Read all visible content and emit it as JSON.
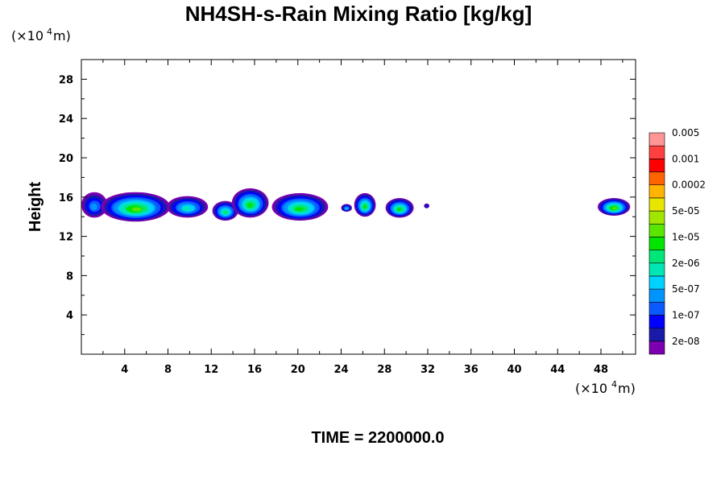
{
  "chart_data": {
    "type": "heatmap",
    "title": "NH4SH-s-Rain Mixing Ratio [kg/kg]",
    "ylabel": "Height",
    "xlabel": "",
    "x_unit": {
      "prefix": "(×10",
      "exp": "4",
      "suffix": " m)"
    },
    "y_unit": {
      "prefix": "(×10",
      "exp": "4",
      "suffix": " m)"
    },
    "xlim": [
      0,
      51.2
    ],
    "ylim": [
      0,
      30
    ],
    "x_ticks": [
      4,
      8,
      12,
      16,
      20,
      24,
      28,
      32,
      36,
      40,
      44,
      48
    ],
    "y_ticks": [
      4,
      8,
      12,
      16,
      20,
      24,
      28
    ],
    "x_minor_step": 2,
    "y_minor_step": 2,
    "colorbar": {
      "colors": [
        "#7a00b0",
        "#1a1aa8",
        "#0000ff",
        "#0a5aff",
        "#0094ff",
        "#00d2ff",
        "#00e6b4",
        "#00e678",
        "#00e600",
        "#5ae600",
        "#a0e600",
        "#e6e600",
        "#ffb400",
        "#ff6400",
        "#ff0000",
        "#ff4040",
        "#ff9696"
      ],
      "labels": [
        "2e-08",
        "1e-07",
        "5e-07",
        "2e-06",
        "1e-05",
        "5e-05",
        "0.0002",
        "0.001",
        "0.005"
      ]
    },
    "clouds": [
      {
        "x": 1.2,
        "y": 15.2,
        "w": 2.4,
        "h": 2.6,
        "level": 4
      },
      {
        "x": 5.0,
        "y": 15.0,
        "w": 6.4,
        "h": 3.0,
        "level": 9
      },
      {
        "x": 9.8,
        "y": 15.0,
        "w": 3.8,
        "h": 2.2,
        "level": 6
      },
      {
        "x": 13.3,
        "y": 14.6,
        "w": 2.4,
        "h": 2.0,
        "level": 7
      },
      {
        "x": 15.6,
        "y": 15.4,
        "w": 3.4,
        "h": 3.0,
        "level": 8
      },
      {
        "x": 20.2,
        "y": 15.0,
        "w": 5.2,
        "h": 2.8,
        "level": 8
      },
      {
        "x": 24.5,
        "y": 14.9,
        "w": 1.0,
        "h": 0.8,
        "level": 5
      },
      {
        "x": 26.2,
        "y": 15.2,
        "w": 2.0,
        "h": 2.4,
        "level": 8
      },
      {
        "x": 29.4,
        "y": 14.9,
        "w": 2.6,
        "h": 2.0,
        "level": 8
      },
      {
        "x": 31.9,
        "y": 15.1,
        "w": 0.5,
        "h": 0.5,
        "level": 2
      },
      {
        "x": 49.2,
        "y": 15.0,
        "w": 3.0,
        "h": 1.8,
        "level": 9
      }
    ]
  },
  "time_label": "TIME = 2200000.0"
}
